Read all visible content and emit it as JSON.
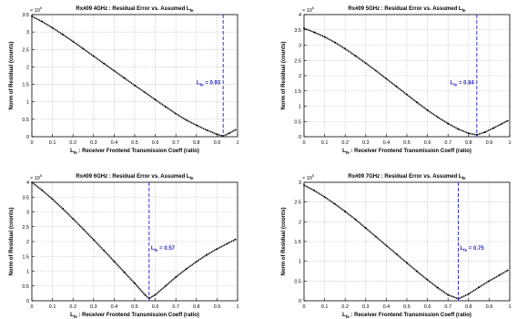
{
  "colors": {
    "curve": "#000000",
    "marker": "#1f1fcc",
    "grid": "#b8b8b8",
    "axis": "#000000",
    "background": "#ffffff"
  },
  "chart_data": [
    {
      "type": "line",
      "title_prefix": "Rx#09 4GHz : Residual Error vs. Assumed L",
      "title_sub": "fe",
      "xlabel_sym": "L",
      "xlabel_sub": "fe",
      "xlabel_rest": ": Receiver Frontend Transmission Coeff (ratio)",
      "ylabel": "Norm of Residual (counts)",
      "exponent": "× 10",
      "exponent_power": "5",
      "xlim": [
        0,
        1
      ],
      "ylim": [
        0,
        3.5
      ],
      "xticks": [
        "0",
        "0.1",
        "0.2",
        "0.3",
        "0.4",
        "0.5",
        "0.6",
        "0.7",
        "0.8",
        "0.9",
        "1"
      ],
      "yticks": [
        "0",
        "0.5",
        "1",
        "1.5",
        "2",
        "2.5",
        "3",
        "3.5"
      ],
      "grid": true,
      "marker": {
        "x": 0.93,
        "sym": "L",
        "sub": "fe",
        "text": "= 0.93"
      },
      "series": [
        {
          "x": [
            0,
            0.05,
            0.1,
            0.15,
            0.2,
            0.25,
            0.3,
            0.35,
            0.4,
            0.45,
            0.5,
            0.55,
            0.6,
            0.65,
            0.7,
            0.75,
            0.8,
            0.85,
            0.9,
            0.93,
            0.96,
            0.99
          ],
          "y": [
            3.45,
            3.3,
            3.12,
            2.93,
            2.73,
            2.52,
            2.31,
            2.1,
            1.89,
            1.68,
            1.47,
            1.27,
            1.06,
            0.86,
            0.66,
            0.48,
            0.33,
            0.19,
            0.07,
            0.02,
            0.1,
            0.2
          ]
        }
      ]
    },
    {
      "type": "line",
      "title_prefix": "Rx#09 5GHz : Residual Error vs. Assumed L",
      "title_sub": "fe",
      "xlabel_sym": "L",
      "xlabel_sub": "fe",
      "xlabel_rest": ": Receiver Frontend Transmission Coeff (ratio)",
      "ylabel": "Norm of Residual (counts)",
      "exponent": "× 10",
      "exponent_power": "5",
      "xlim": [
        0,
        1
      ],
      "ylim": [
        0,
        4
      ],
      "xticks": [
        "0",
        "0.1",
        "0.2",
        "0.3",
        "0.4",
        "0.5",
        "0.6",
        "0.7",
        "0.8",
        "0.9",
        "1"
      ],
      "yticks": [
        "0",
        "0.5",
        "1",
        "1.5",
        "2",
        "2.5",
        "3",
        "3.5",
        "4"
      ],
      "grid": true,
      "marker": {
        "x": 0.84,
        "sym": "L",
        "sub": "fe",
        "text": "= 0.84"
      },
      "series": [
        {
          "x": [
            0,
            0.05,
            0.1,
            0.15,
            0.2,
            0.25,
            0.3,
            0.35,
            0.4,
            0.45,
            0.5,
            0.55,
            0.6,
            0.65,
            0.7,
            0.75,
            0.8,
            0.84,
            0.88,
            0.92,
            0.96,
            0.99
          ],
          "y": [
            3.55,
            3.42,
            3.27,
            3.09,
            2.88,
            2.65,
            2.41,
            2.16,
            1.9,
            1.64,
            1.38,
            1.12,
            0.87,
            0.64,
            0.43,
            0.25,
            0.11,
            0.06,
            0.15,
            0.28,
            0.42,
            0.52
          ]
        }
      ]
    },
    {
      "type": "line",
      "title_prefix": "Rx#09 6GHz : Residual Error vs. Assumed L",
      "title_sub": "fe",
      "xlabel_sym": "L",
      "xlabel_sub": "fe",
      "xlabel_rest": ": Receiver Frontend Transmission Coeff (ratio)",
      "ylabel": "Norm of Residual (counts)",
      "exponent": "× 10",
      "exponent_power": "5",
      "xlim": [
        0,
        1
      ],
      "ylim": [
        0,
        4
      ],
      "xticks": [
        "0",
        "0.1",
        "0.2",
        "0.3",
        "0.4",
        "0.5",
        "0.6",
        "0.7",
        "0.8",
        "0.9",
        "1"
      ],
      "yticks": [
        "0",
        "0.5",
        "1",
        "1.5",
        "2",
        "2.5",
        "3",
        "3.5",
        "4"
      ],
      "grid": true,
      "marker": {
        "x": 0.57,
        "sym": "L",
        "sub": "fe",
        "text": "= 0.57"
      },
      "series": [
        {
          "x": [
            0,
            0.05,
            0.1,
            0.15,
            0.2,
            0.25,
            0.3,
            0.35,
            0.4,
            0.45,
            0.5,
            0.55,
            0.57,
            0.6,
            0.65,
            0.7,
            0.75,
            0.8,
            0.85,
            0.9,
            0.95,
            0.99
          ],
          "y": [
            4.0,
            3.73,
            3.43,
            3.11,
            2.77,
            2.42,
            2.06,
            1.7,
            1.33,
            0.96,
            0.59,
            0.2,
            0.08,
            0.2,
            0.5,
            0.8,
            1.07,
            1.32,
            1.55,
            1.75,
            1.93,
            2.07
          ]
        }
      ]
    },
    {
      "type": "line",
      "title_prefix": "Rx#09 7GHz : Residual Error vs. Assumed L",
      "title_sub": "fe",
      "xlabel_sym": "L",
      "xlabel_sub": "fe",
      "xlabel_rest": ": Receiver Frontend Transmission Coeff (ratio)",
      "ylabel": "Norm of Residual (counts)",
      "exponent": "× 10",
      "exponent_power": "5",
      "xlim": [
        0,
        1
      ],
      "ylim": [
        0,
        3
      ],
      "xticks": [
        "0",
        "0.1",
        "0.2",
        "0.3",
        "0.4",
        "0.5",
        "0.6",
        "0.7",
        "0.8",
        "0.9",
        "1"
      ],
      "yticks": [
        "0",
        "0.5",
        "1",
        "1.5",
        "2",
        "2.5",
        "3"
      ],
      "grid": true,
      "marker": {
        "x": 0.75,
        "sym": "L",
        "sub": "fe",
        "text": "= 0.75"
      },
      "series": [
        {
          "x": [
            0,
            0.05,
            0.1,
            0.15,
            0.2,
            0.25,
            0.3,
            0.35,
            0.4,
            0.45,
            0.5,
            0.55,
            0.6,
            0.65,
            0.7,
            0.75,
            0.8,
            0.85,
            0.9,
            0.95,
            0.99
          ],
          "y": [
            2.93,
            2.79,
            2.63,
            2.45,
            2.26,
            2.06,
            1.84,
            1.62,
            1.4,
            1.18,
            0.96,
            0.74,
            0.53,
            0.33,
            0.15,
            0.05,
            0.17,
            0.34,
            0.5,
            0.65,
            0.77
          ]
        }
      ]
    }
  ]
}
